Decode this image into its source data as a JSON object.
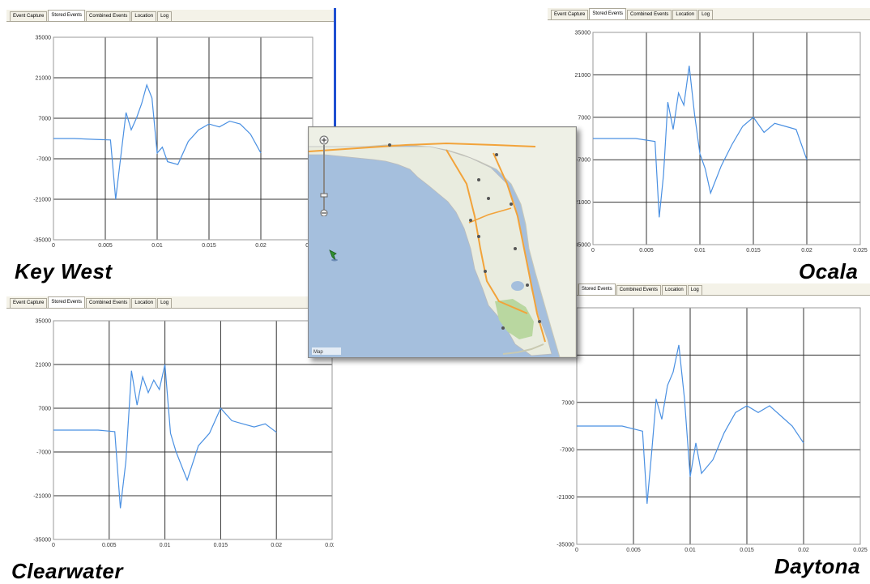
{
  "tabs": [
    "Event Capture",
    "Stored Events",
    "Combined Events",
    "Location",
    "Log"
  ],
  "active_tab": "Stored Events",
  "cities": {
    "key_west": "Key West",
    "ocala": "Ocala",
    "clearwater": "Clearwater",
    "daytona": "Daytona"
  },
  "y_ticks": [
    "35000",
    "21000",
    "7000",
    "-7000",
    "-21000",
    "-35000"
  ],
  "x_ticks": [
    "0",
    "0.005",
    "0.01",
    "0.015",
    "0.02",
    "0.025"
  ],
  "map": {
    "attribution": "Map",
    "marker": "pin"
  },
  "colors": {
    "trace": "#4a90e2",
    "grid": "#333333",
    "map_water": "#a5bfdd",
    "map_land": "#eef0e6"
  },
  "chart_data": [
    {
      "type": "line",
      "title": "Key West",
      "xlim": [
        0,
        0.025
      ],
      "ylim": [
        -35000,
        35000
      ],
      "series": [
        {
          "x": [
            0.0,
            0.002,
            0.004,
            0.0055,
            0.006,
            0.0065,
            0.007,
            0.0075,
            0.008,
            0.0085,
            0.009,
            0.0095,
            0.01,
            0.0105,
            0.011,
            0.012,
            0.013,
            0.014,
            0.015,
            0.016,
            0.017,
            0.018,
            0.019,
            0.02
          ],
          "y": [
            0,
            0,
            -300,
            -500,
            -21000,
            -6000,
            9000,
            3000,
            7000,
            12000,
            18500,
            14000,
            -5000,
            -3000,
            -8000,
            -9000,
            -1000,
            3000,
            5000,
            4000,
            6000,
            5000,
            1500,
            -5000
          ]
        }
      ]
    },
    {
      "type": "line",
      "title": "Ocala",
      "xlim": [
        0,
        0.025
      ],
      "ylim": [
        -35000,
        35000
      ],
      "series": [
        {
          "x": [
            0.0,
            0.002,
            0.004,
            0.0058,
            0.0062,
            0.0066,
            0.007,
            0.0075,
            0.008,
            0.0085,
            0.009,
            0.0095,
            0.01,
            0.0105,
            0.011,
            0.012,
            0.013,
            0.014,
            0.015,
            0.016,
            0.017,
            0.018,
            0.019,
            0.02
          ],
          "y": [
            0,
            0,
            0,
            -1000,
            -26000,
            -12000,
            12000,
            3000,
            15000,
            11000,
            24000,
            8000,
            -5000,
            -10000,
            -18000,
            -9000,
            -2000,
            4000,
            7000,
            2000,
            5000,
            4000,
            3000,
            -7000
          ]
        }
      ]
    },
    {
      "type": "line",
      "title": "Clearwater",
      "xlim": [
        0,
        0.025
      ],
      "ylim": [
        -35000,
        35000
      ],
      "series": [
        {
          "x": [
            0.0,
            0.002,
            0.004,
            0.0055,
            0.006,
            0.0065,
            0.007,
            0.0075,
            0.008,
            0.0085,
            0.009,
            0.0095,
            0.01,
            0.0105,
            0.011,
            0.012,
            0.013,
            0.014,
            0.015,
            0.016,
            0.017,
            0.018,
            0.019,
            0.02
          ],
          "y": [
            0,
            0,
            0,
            -500,
            -25000,
            -10000,
            19000,
            8000,
            17000,
            12000,
            16000,
            13000,
            21000,
            -1000,
            -7000,
            -16000,
            -5000,
            -1000,
            7000,
            3000,
            2000,
            1000,
            2000,
            -700
          ]
        }
      ]
    },
    {
      "type": "line",
      "title": "Daytona",
      "xlim": [
        0,
        0.025
      ],
      "ylim": [
        -35000,
        35000
      ],
      "series": [
        {
          "x": [
            0.0,
            0.002,
            0.004,
            0.0058,
            0.0062,
            0.0066,
            0.007,
            0.0075,
            0.008,
            0.0085,
            0.009,
            0.0095,
            0.01,
            0.0105,
            0.011,
            0.012,
            0.013,
            0.014,
            0.015,
            0.016,
            0.017,
            0.018,
            0.019,
            0.02
          ],
          "y": [
            0,
            0,
            0,
            -1500,
            -23000,
            -8000,
            8000,
            2000,
            12000,
            16000,
            24000,
            8000,
            -15000,
            -5000,
            -14000,
            -10000,
            -2000,
            4000,
            6000,
            4000,
            6000,
            3000,
            0,
            -5000
          ]
        }
      ]
    }
  ]
}
